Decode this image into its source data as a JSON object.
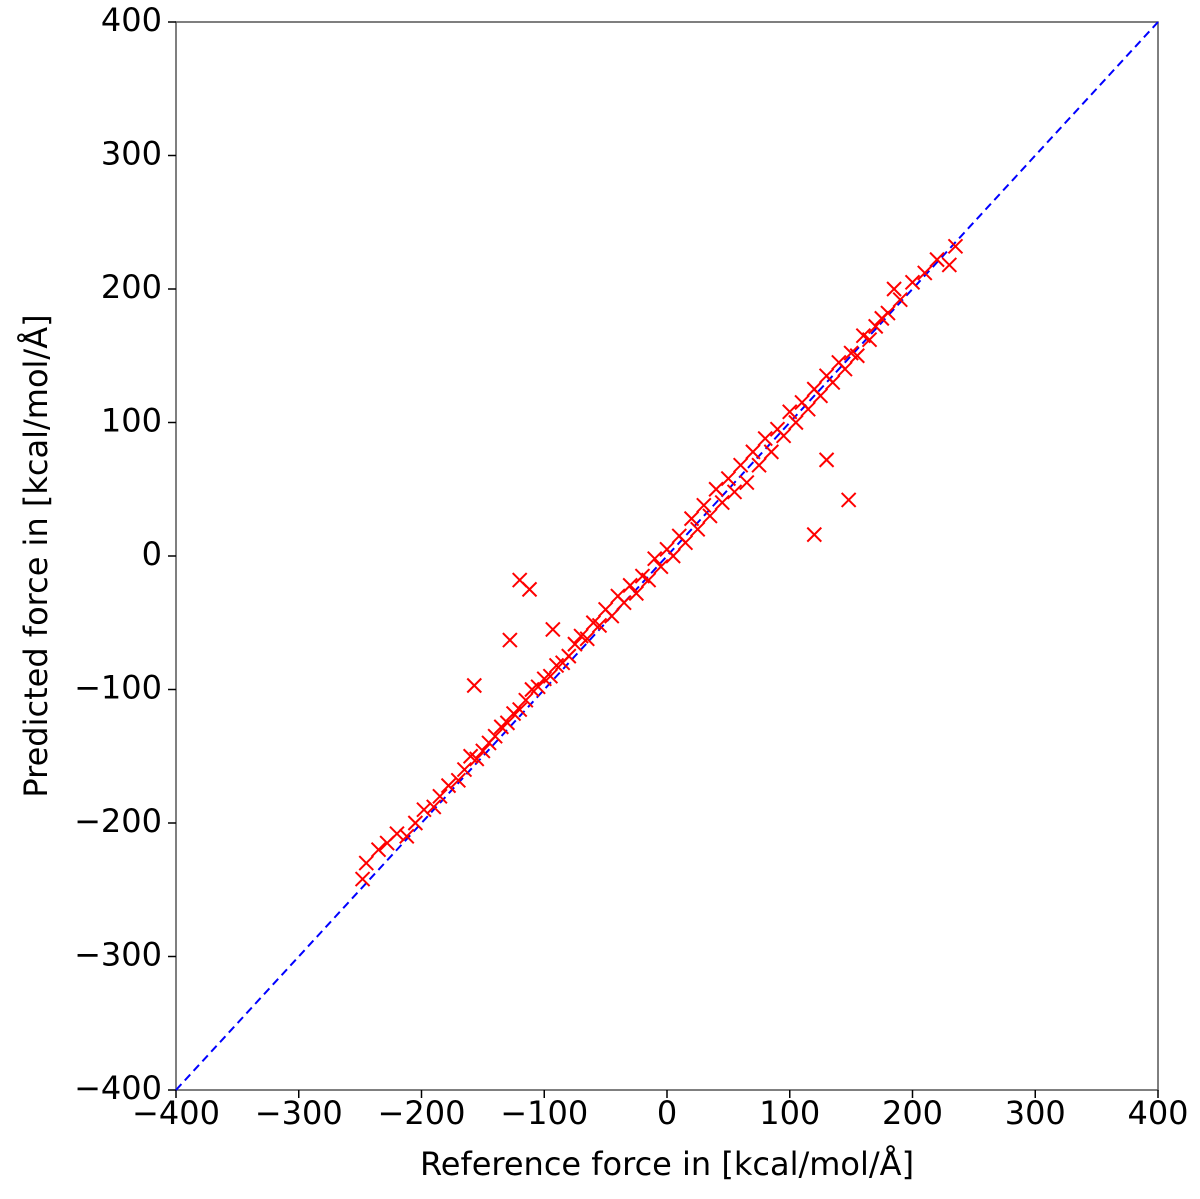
{
  "chart_data": {
    "type": "scatter",
    "xlabel": "Reference force in [kcal/mol/Å]",
    "ylabel": "Predicted force in [kcal/mol/Å]",
    "color": "#ff0000",
    "marker": "x",
    "xlim": [
      -400,
      400
    ],
    "ylim": [
      -400,
      400
    ],
    "xticks": [
      {
        "value": -400,
        "label": "−400"
      },
      {
        "value": -300,
        "label": "−300"
      },
      {
        "value": -200,
        "label": "−200"
      },
      {
        "value": -100,
        "label": "−100"
      },
      0,
      100,
      200,
      300,
      400
    ],
    "yticks": [
      {
        "value": -400,
        "label": "−400"
      },
      {
        "value": -300,
        "label": "−300"
      },
      {
        "value": -200,
        "label": "−200"
      },
      {
        "value": -100,
        "label": "−100"
      },
      0,
      100,
      200,
      300,
      400
    ],
    "reference_line": {
      "x": [
        -400,
        400
      ],
      "y": [
        -400,
        400
      ],
      "color": "#0000ff",
      "style": "dashed"
    },
    "x": [
      -248,
      -245,
      -235,
      -228,
      -220,
      -212,
      -205,
      -198,
      -190,
      -185,
      -178,
      -170,
      -165,
      -160,
      -155,
      -150,
      -145,
      -140,
      -135,
      -130,
      -125,
      -120,
      -115,
      -110,
      -105,
      -100,
      -95,
      -90,
      -85,
      -80,
      -75,
      -70,
      -65,
      -60,
      -55,
      -50,
      -45,
      -40,
      -35,
      -30,
      -25,
      -20,
      -15,
      -10,
      -5,
      0,
      5,
      10,
      15,
      20,
      25,
      30,
      35,
      40,
      45,
      50,
      55,
      60,
      65,
      70,
      75,
      80,
      85,
      90,
      95,
      100,
      105,
      110,
      115,
      120,
      125,
      130,
      135,
      140,
      145,
      150,
      155,
      160,
      165,
      170,
      175,
      180,
      190,
      200,
      210,
      220,
      230,
      235,
      -120,
      -112,
      -128,
      -157,
      -93,
      120,
      130,
      148,
      185
    ],
    "y": [
      -242,
      -230,
      -220,
      -215,
      -208,
      -210,
      -200,
      -190,
      -188,
      -180,
      -172,
      -168,
      -160,
      -150,
      -152,
      -146,
      -140,
      -135,
      -128,
      -125,
      -118,
      -115,
      -108,
      -100,
      -98,
      -92,
      -90,
      -82,
      -80,
      -75,
      -66,
      -60,
      -62,
      -50,
      -52,
      -40,
      -45,
      -30,
      -35,
      -22,
      -28,
      -15,
      -18,
      -2,
      -8,
      5,
      0,
      15,
      10,
      28,
      20,
      38,
      30,
      50,
      40,
      58,
      48,
      68,
      55,
      78,
      68,
      88,
      78,
      95,
      90,
      108,
      100,
      115,
      110,
      125,
      120,
      135,
      130,
      145,
      140,
      152,
      150,
      165,
      162,
      172,
      178,
      182,
      192,
      205,
      212,
      222,
      218,
      232,
      -18,
      -25,
      -63,
      -97,
      -55,
      16,
      72,
      42,
      200
    ]
  }
}
